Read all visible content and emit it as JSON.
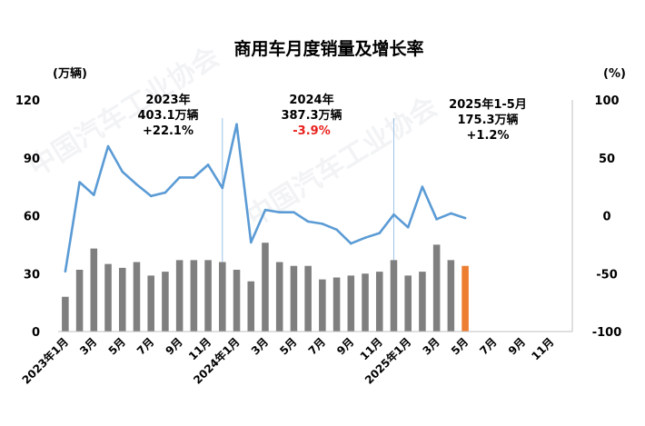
{
  "chart_data": {
    "type": "bar+line",
    "title": "商用车月度销量及增长率",
    "left_axis_unit": "(万辆)",
    "right_axis_unit": "(%)",
    "ylim_left": [
      0,
      120
    ],
    "yticks_left": [
      "0",
      "30",
      "60",
      "90",
      "120"
    ],
    "ylim_right": [
      -100,
      100
    ],
    "yticks_right": [
      "-100",
      "-50",
      "0",
      "50",
      "100"
    ],
    "x_tick_labels": [
      "2023年1月",
      "3月",
      "5月",
      "7月",
      "9月",
      "11月",
      "2024年1月",
      "3月",
      "5月",
      "7月",
      "9月",
      "11月",
      "2025年1月",
      "3月",
      "5月",
      "7月",
      "9月",
      "11月"
    ],
    "months_total": 36,
    "series": [
      {
        "kind": "bar",
        "axis": "left",
        "values": [
          18,
          32,
          43,
          35,
          33,
          36,
          29,
          31,
          37,
          37,
          37,
          36,
          32,
          26,
          46,
          36,
          34,
          34,
          27,
          28,
          29,
          30,
          31,
          37,
          29,
          31,
          45,
          37,
          34
        ]
      },
      {
        "kind": "line",
        "axis": "right",
        "values": [
          -48,
          29,
          18,
          60,
          38,
          27,
          17,
          20,
          33,
          33,
          44,
          24,
          79,
          -23,
          5,
          3,
          3,
          -5,
          -7,
          -12,
          -24,
          -19,
          -15,
          1,
          -10,
          25,
          -3,
          2,
          -2
        ]
      }
    ],
    "highlight_bar_index": 28,
    "bar_color": "#7f7f7f",
    "highlight_color": "#ed7d31",
    "line_color": "#5b9bd5",
    "annotations": [
      {
        "lines": [
          "2023年",
          "403.1万辆",
          "+22.1%"
        ],
        "red_line": -1
      },
      {
        "lines": [
          "2024年",
          "387.3万辆",
          "-3.9%"
        ],
        "red_line": 2
      },
      {
        "lines": [
          "2025年1-5月",
          "175.3万辆",
          "+1.2%"
        ],
        "red_line": -1
      }
    ],
    "year_dividers_after_month": [
      12,
      24
    ],
    "grid": false,
    "watermark": "中国汽车工业协会 China Association of Automobile Manufacturers"
  }
}
